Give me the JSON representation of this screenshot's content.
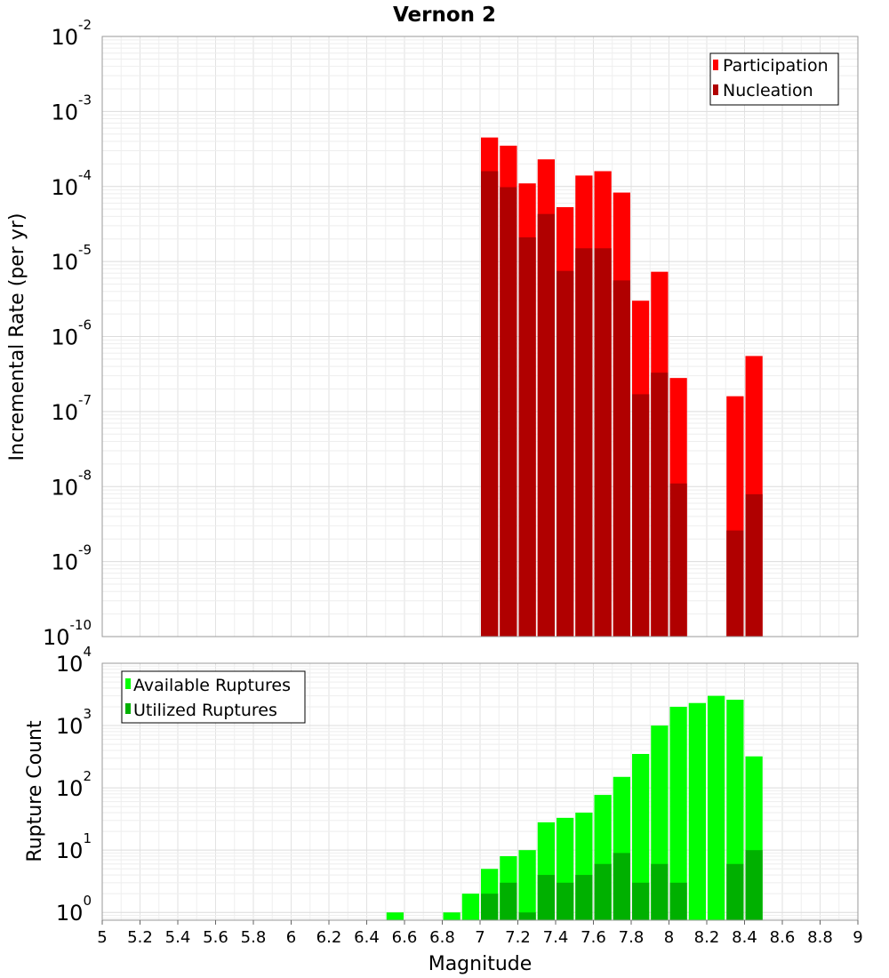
{
  "chart_data": [
    {
      "type": "bar",
      "title": "Vernon 2",
      "xlabel": "",
      "ylabel": "Incremental Rate (per yr)",
      "yscale": "log",
      "ylim": [
        1e-10,
        0.01
      ],
      "xlim": [
        5,
        9
      ],
      "bar_width": 0.1,
      "grid": true,
      "legend_position": "top-right",
      "x": [
        7.05,
        7.15,
        7.25,
        7.35,
        7.45,
        7.55,
        7.65,
        7.75,
        7.85,
        7.95,
        8.05,
        8.35,
        8.45
      ],
      "series": [
        {
          "name": "Participation",
          "color": "#ff0000",
          "values": [
            0.00045,
            0.00035,
            0.00011,
            0.00023,
            5.3e-05,
            0.00014,
            0.00016,
            8.3e-05,
            3e-06,
            7.3e-06,
            2.8e-07,
            1.6e-07,
            5.5e-07
          ]
        },
        {
          "name": "Nucleation",
          "color": "#b00000",
          "values": [
            0.00016,
            9.8e-05,
            2.1e-05,
            4.3e-05,
            7.5e-06,
            1.5e-05,
            1.5e-05,
            5.6e-06,
            1.7e-07,
            3.3e-07,
            1.1e-08,
            2.6e-09,
            7.9e-09
          ]
        }
      ],
      "yticks": [
        {
          "base": "10",
          "exp": "-10"
        },
        {
          "base": "10",
          "exp": "-9"
        },
        {
          "base": "10",
          "exp": "-8"
        },
        {
          "base": "10",
          "exp": "-7"
        },
        {
          "base": "10",
          "exp": "-6"
        },
        {
          "base": "10",
          "exp": "-5"
        },
        {
          "base": "10",
          "exp": "-4"
        },
        {
          "base": "10",
          "exp": "-3"
        },
        {
          "base": "10",
          "exp": "-2"
        }
      ]
    },
    {
      "type": "bar",
      "title": "",
      "xlabel": "Magnitude",
      "ylabel": "Rupture Count",
      "yscale": "log",
      "ylim": [
        0.75,
        10000
      ],
      "xlim": [
        5,
        9
      ],
      "bar_width": 0.1,
      "grid": true,
      "legend_position": "top-left",
      "x": [
        6.55,
        6.85,
        6.95,
        7.05,
        7.15,
        7.25,
        7.35,
        7.45,
        7.55,
        7.65,
        7.75,
        7.85,
        7.95,
        8.05,
        8.15,
        8.25,
        8.35,
        8.45
      ],
      "series": [
        {
          "name": "Available Ruptures",
          "color": "#00ff00",
          "values": [
            1,
            1,
            2,
            5,
            8,
            10,
            28,
            33,
            40,
            77,
            150,
            350,
            1000,
            2000,
            2300,
            3000,
            2600,
            320
          ]
        },
        {
          "name": "Utilized Ruptures",
          "color": "#00b000",
          "values": [
            0,
            0,
            0,
            2,
            3,
            1,
            4,
            3,
            4,
            6,
            9,
            3,
            6,
            3,
            0,
            0,
            6,
            10
          ]
        }
      ],
      "xticks": [
        "5",
        "5.2",
        "5.4",
        "5.6",
        "5.8",
        "6",
        "6.2",
        "6.4",
        "6.6",
        "6.8",
        "7",
        "7.2",
        "7.4",
        "7.6",
        "7.8",
        "8",
        "8.2",
        "8.4",
        "8.6",
        "8.8",
        "9"
      ],
      "yticks": [
        {
          "base": "10",
          "exp": "0",
          "value": 1
        },
        {
          "base": "10",
          "exp": "1",
          "value": 10
        },
        {
          "base": "10",
          "exp": "2",
          "value": 100
        },
        {
          "base": "10",
          "exp": "3",
          "value": 1000
        },
        {
          "base": "10",
          "exp": "4",
          "value": 10000
        }
      ]
    }
  ]
}
